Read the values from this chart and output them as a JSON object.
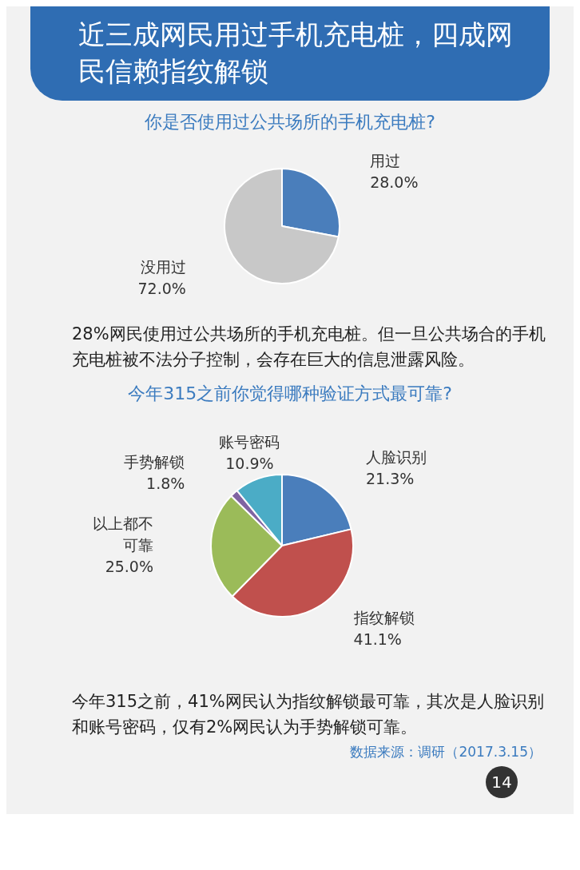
{
  "chart_data": [
    {
      "type": "pie",
      "title": "近三成网民用过手机充电桩，四成网民信赖指纹解锁",
      "subtitle": "你是否使用过公共场所的手机充电桩?",
      "categories": [
        "用过",
        "没用过"
      ],
      "values": [
        28.0,
        72.0
      ],
      "value_labels": [
        "28.0%",
        "72.0%"
      ],
      "colors": [
        "#4a7ebb",
        "#c8c8c8"
      ],
      "annotations": [
        "28%网民使用过公共场所的手机充电桩。但一旦公共场合的手机充电桩被不法分子控制，会存在巨大的信息泄露风险。"
      ]
    },
    {
      "type": "pie",
      "title": "今年315之前你觉得哪种验证方式最可靠?",
      "categories": [
        "人脸识别",
        "指纹解锁",
        "以上都不可靠",
        "手势解锁",
        "账号密码"
      ],
      "values": [
        21.3,
        41.1,
        25.0,
        1.8,
        10.9
      ],
      "value_labels": [
        "21.3%",
        "41.1%",
        "25.0%",
        "1.8%",
        "10.9%"
      ],
      "colors": [
        "#4a7ebb",
        "#c0504d",
        "#9bbb59",
        "#8064a2",
        "#4bacc6"
      ],
      "annotations": [
        "今年315之前，41%网民认为指纹解锁最可靠，其次是人脸识别和账号密码，仅有2%网民认为手势解锁可靠。",
        "数据来源：调研（2017.3.15）",
        "14"
      ]
    }
  ]
}
